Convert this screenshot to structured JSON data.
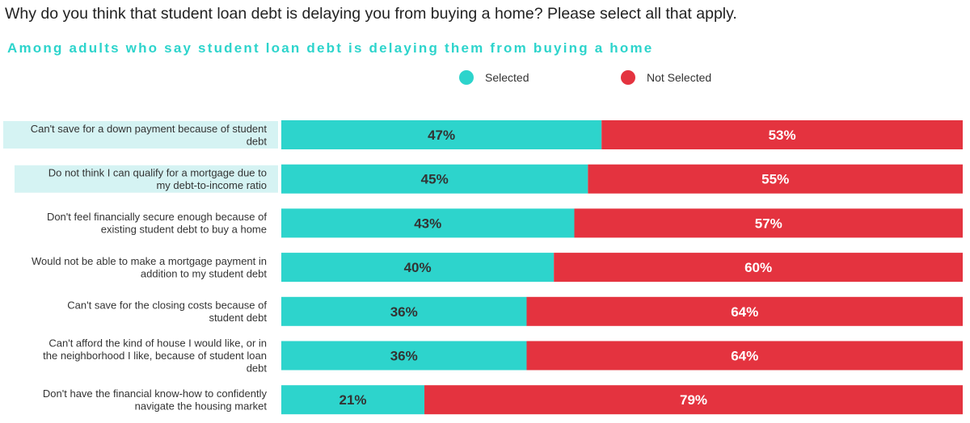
{
  "title": "Why do you think that student loan debt is delaying you from buying a home? Please select all that apply.",
  "subtitle": "Among adults who say student loan debt is delaying them from buying a home",
  "colors": {
    "selected": "#2dd4cc",
    "not_selected": "#e4333f",
    "subtitle": "#2dd4cc",
    "label_highlight": "#d5f3f3"
  },
  "chart_data": {
    "type": "bar",
    "orientation": "horizontal",
    "stacked": true,
    "categories": [
      [
        "Can't save for a down payment because of student",
        "debt"
      ],
      [
        "Do not think I can qualify for a mortgage due to",
        "my debt-to-income ratio"
      ],
      [
        "Don't feel financially secure enough because of",
        "existing student debt to buy a home"
      ],
      [
        "Would not be able to make a mortgage payment in",
        "addition to my student debt"
      ],
      [
        "Can't save for the closing costs because of",
        "student debt"
      ],
      [
        "Can't afford the kind of house I would like, or in",
        "the neighborhood I like, because of student loan",
        "debt"
      ],
      [
        "Don't have the financial know-how to confidently",
        "navigate the housing market"
      ]
    ],
    "highlighted_categories": [
      0,
      1
    ],
    "series": [
      {
        "name": "Selected",
        "values": [
          47,
          45,
          43,
          40,
          36,
          36,
          21
        ],
        "labels": [
          "47%",
          "45%",
          "43%",
          "40%",
          "36%",
          "36%",
          "21%"
        ]
      },
      {
        "name": "Not Selected",
        "values": [
          53,
          55,
          57,
          60,
          64,
          64,
          79
        ],
        "labels": [
          "53%",
          "55%",
          "57%",
          "60%",
          "64%",
          "64%",
          "79%"
        ]
      }
    ],
    "xlim": [
      0,
      100
    ],
    "legend_position": "top-center",
    "grid": false
  }
}
